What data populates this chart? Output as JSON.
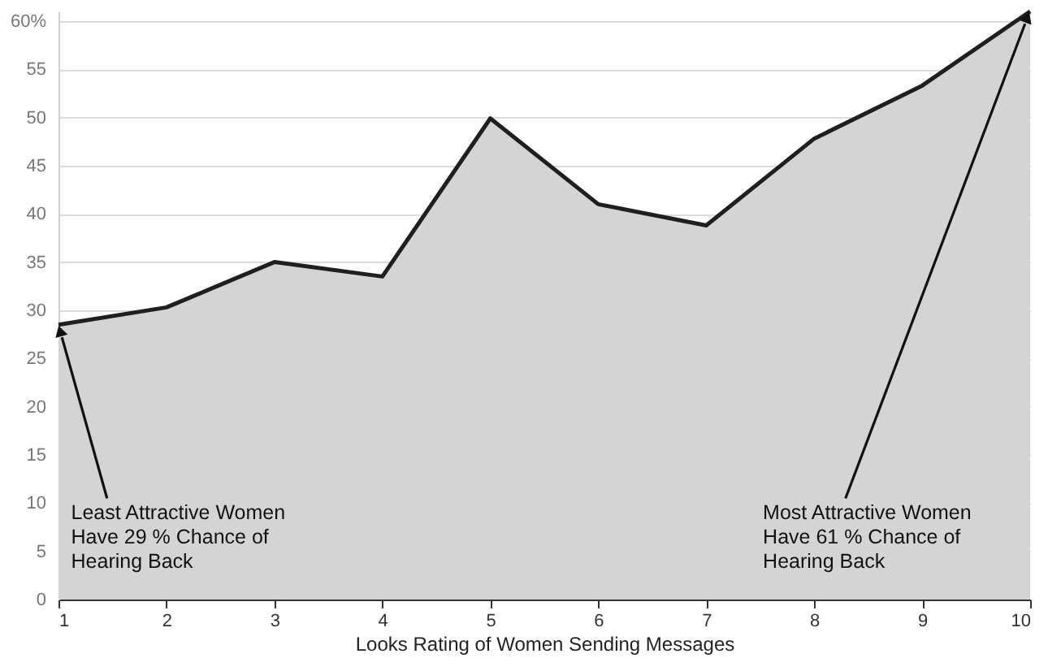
{
  "chart_data": {
    "type": "area",
    "xlabel": "Looks Rating of Women Sending Messages",
    "x": [
      1,
      2,
      3,
      4,
      5,
      6,
      7,
      8,
      9,
      10
    ],
    "series": [
      {
        "color": "#d4d4d4",
        "values": [
          28.5,
          30.3,
          35,
          33.5,
          49.9,
          41,
          38.8,
          47.8,
          53.3,
          61
        ]
      }
    ],
    "xlim": [
      1,
      10
    ],
    "xticks": [
      1,
      2,
      3,
      4,
      5,
      6,
      7,
      8,
      9,
      10
    ],
    "ylim": [
      0,
      61
    ],
    "yticks": [
      0,
      5,
      10,
      15,
      20,
      25,
      30,
      35,
      40,
      45,
      50,
      55,
      {
        "value": 60,
        "label": "60%"
      }
    ],
    "grid": "y",
    "annotations": [
      {
        "text": "Least Attractive Women\nHave 29 % Chance of\nHearing Back",
        "x": 1,
        "y": 28.5
      },
      {
        "text": "Most Attractive Women\nHave 61 % Chance of\nHearing Back",
        "x": 10,
        "y": 61
      }
    ]
  }
}
